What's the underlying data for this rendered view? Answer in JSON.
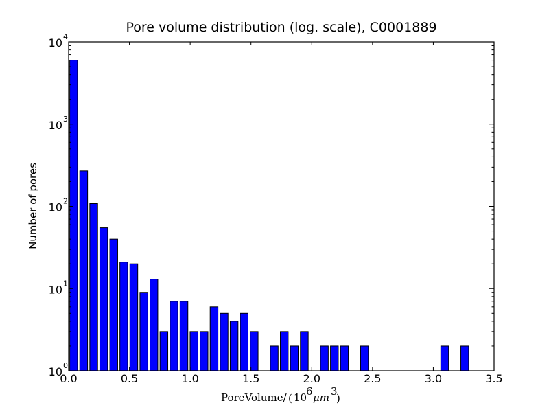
{
  "chart_data": {
    "type": "bar",
    "title": "Pore volume distribution (log. scale), C0001889",
    "xlabel_parts": {
      "prefix": "PoreVolume/",
      "open": "(",
      "mantissa": "10",
      "power": "6",
      "unit": "μm",
      "unit_power": "3",
      "close": ")"
    },
    "ylabel": "Number of pores",
    "xlim": [
      0.0,
      3.5
    ],
    "ylim": [
      1,
      10000
    ],
    "yscale": "log",
    "grid": false,
    "legend": null,
    "bar_color": "#0000ff",
    "xticks": [
      "0.0",
      "0.5",
      "1.0",
      "1.5",
      "2.0",
      "2.5",
      "3.0",
      "3.5"
    ],
    "yticks": [
      {
        "base": "10",
        "exp": "0"
      },
      {
        "base": "10",
        "exp": "1"
      },
      {
        "base": "10",
        "exp": "2"
      },
      {
        "base": "10",
        "exp": "3"
      },
      {
        "base": "10",
        "exp": "4"
      }
    ],
    "bin_width": 0.0825,
    "bin_starts": [
      0.0,
      0.0825,
      0.165,
      0.2475,
      0.33,
      0.4125,
      0.495,
      0.5775,
      0.66,
      0.7425,
      0.825,
      0.9075,
      0.99,
      1.0725,
      1.155,
      1.2375,
      1.32,
      1.4025,
      1.485,
      1.5675,
      1.65,
      1.7325,
      1.815,
      1.8975,
      1.98,
      2.0625,
      2.145,
      2.2275,
      2.31,
      2.3925,
      2.475,
      2.5575,
      2.64,
      2.7225,
      2.805,
      2.8875,
      2.97,
      3.0525,
      3.135,
      3.2175
    ],
    "values": [
      6000,
      270,
      108,
      55,
      40,
      21,
      20,
      9,
      13,
      3,
      7,
      7,
      3,
      3,
      6,
      5,
      4,
      5,
      3,
      0,
      2,
      3,
      2,
      3,
      0,
      2,
      2,
      2,
      0,
      2,
      0,
      0,
      0,
      0,
      0,
      0,
      0,
      2,
      0,
      2
    ]
  }
}
